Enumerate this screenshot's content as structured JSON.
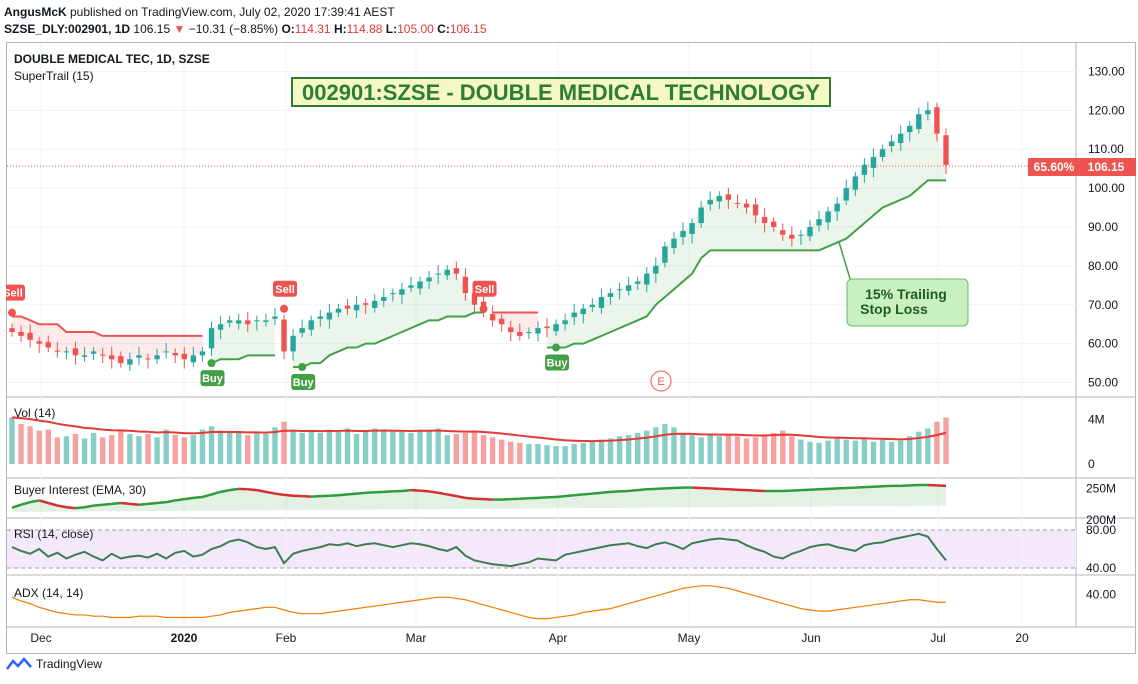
{
  "header": {
    "line1": {
      "author": "AngusMcK",
      "text": " published on TradingView.com, July 02, 2020 17:39:41 AEST"
    },
    "line2": {
      "symbol": "SZSE_DLY:002901, 1D",
      "last": "106.15",
      "change": "−10.31 (−8.85%)",
      "o_label": "O:",
      "o": "114.31",
      "h_label": "H:",
      "h": "114.88",
      "l_label": "L:",
      "l": "105.00",
      "c_label": "C:",
      "c": "106.15"
    }
  },
  "chart_title_line": "DOUBLE MEDICAL TEC, 1D, SZSE",
  "indicator_label": "SuperTrail (15)",
  "banner": "002901:SZSE - DOUBLE MEDICAL TECHNOLOGY",
  "annotation": {
    "line1": "15% Trailing",
    "line2": "Stop Loss"
  },
  "price_badge": {
    "pct": "65.60%",
    "value": "106.15"
  },
  "earnings_marker": "E",
  "signals": [
    {
      "type": "Sell",
      "label": "Sell",
      "date_index": 0
    },
    {
      "type": "Buy",
      "label": "Buy",
      "date_index": 22
    },
    {
      "type": "Sell",
      "label": "Sell",
      "date_index": 30
    },
    {
      "type": "Buy",
      "label": "Buy",
      "date_index": 32
    },
    {
      "type": "Sell",
      "label": "Sell",
      "date_index": 52
    },
    {
      "type": "Buy",
      "label": "Buy",
      "date_index": 60
    }
  ],
  "panes": {
    "volume": {
      "label": "Vol (14)",
      "ticks": [
        "4M",
        "0"
      ]
    },
    "buyer": {
      "label": "Buyer Interest (EMA, 30)",
      "ticks": [
        "250M",
        "200M"
      ]
    },
    "rsi": {
      "label": "RSI (14, close)",
      "ticks": [
        "80.00",
        "40.00"
      ]
    },
    "adx": {
      "label": "ADX (14, 14)",
      "ticks": [
        "40.00"
      ]
    }
  },
  "footer": {
    "brand": "TradingView"
  },
  "colors": {
    "up": "#26a69a",
    "down": "#ef5350",
    "trail_up": "#43a047",
    "trail_down": "#ef5350",
    "rsi": "#3e7d4f",
    "adx": "#f57c00",
    "vol_ma": "#e53935"
  },
  "chart_data": {
    "type": "candlestick",
    "title": "DOUBLE MEDICAL TEC, 1D, SZSE",
    "price_axis_ticks": [
      130,
      120,
      110,
      100,
      90,
      80,
      70,
      60,
      50
    ],
    "ylim": [
      45,
      135
    ],
    "x_axis_labels": [
      "Dec",
      "2020",
      "Feb",
      "Mar",
      "Apr",
      "May",
      "Jun",
      "Jul",
      "20"
    ],
    "close": [
      63,
      62,
      61,
      60,
      59,
      58,
      58,
      57,
      57,
      58,
      57,
      56,
      55,
      56,
      57,
      56,
      57,
      58,
      57,
      56,
      57,
      58,
      64,
      65,
      66,
      66,
      65,
      66,
      66,
      67,
      58,
      62,
      64,
      66,
      67,
      68,
      69,
      69,
      70,
      70,
      71,
      72,
      73,
      74,
      75,
      76,
      77,
      78,
      79,
      78,
      73,
      70,
      68,
      66,
      65,
      63,
      62,
      63,
      64,
      64,
      65,
      66,
      68,
      69,
      70,
      72,
      73,
      74,
      75,
      76,
      78,
      80,
      85,
      87,
      89,
      91,
      95,
      97,
      98,
      97,
      96,
      95,
      93,
      91,
      90,
      88,
      87,
      88,
      90,
      92,
      94,
      96,
      100,
      103,
      106,
      108,
      110,
      112,
      114,
      116,
      119,
      120,
      114,
      106
    ],
    "supertrail": [
      67,
      67,
      66,
      65,
      65,
      65,
      63,
      63,
      63,
      63,
      62,
      62,
      62,
      62,
      62,
      62,
      62,
      62,
      62,
      62,
      62,
      62,
      55,
      56,
      56,
      56,
      57,
      57,
      57,
      57,
      68,
      54,
      54,
      55,
      55,
      57,
      58,
      59,
      59,
      60,
      60,
      61,
      62,
      63,
      64,
      65,
      66,
      66,
      67,
      67,
      67,
      68,
      68,
      68,
      68,
      68,
      68,
      68,
      68,
      59,
      59,
      59,
      60,
      60,
      61,
      62,
      63,
      64,
      65,
      66,
      67,
      70,
      72,
      74,
      76,
      78,
      82,
      84,
      84,
      84,
      84,
      84,
      84,
      84,
      84,
      84,
      84,
      84,
      84,
      84,
      85,
      86,
      87,
      89,
      91,
      93,
      95,
      96,
      97,
      98,
      100,
      102,
      102,
      102
    ],
    "volume_millions": [
      4.2,
      3.6,
      3.4,
      3.0,
      3.1,
      2.4,
      2.5,
      2.7,
      2.3,
      2.8,
      2.4,
      2.6,
      3.0,
      2.7,
      2.5,
      2.7,
      2.4,
      3.1,
      2.6,
      2.4,
      2.6,
      3.1,
      3.4,
      3.0,
      2.8,
      2.9,
      2.6,
      2.8,
      2.7,
      3.3,
      3.8,
      3.0,
      2.8,
      3.0,
      2.8,
      3.1,
      3.0,
      3.2,
      2.7,
      3.0,
      3.2,
      3.1,
      2.9,
      3.0,
      2.8,
      3.1,
      3.0,
      3.2,
      2.6,
      2.7,
      2.8,
      3.0,
      2.6,
      2.4,
      2.2,
      2.0,
      1.9,
      1.8,
      1.8,
      1.7,
      1.6,
      1.6,
      1.8,
      1.9,
      2.0,
      2.2,
      2.3,
      2.5,
      2.6,
      2.8,
      3.0,
      3.3,
      3.6,
      3.3,
      2.8,
      2.6,
      2.4,
      2.6,
      2.5,
      2.7,
      2.5,
      2.3,
      2.4,
      2.6,
      2.8,
      3.0,
      2.5,
      2.2,
      2.0,
      1.9,
      2.1,
      2.3,
      2.2,
      2.1,
      2.3,
      2.0,
      2.2,
      2.0,
      2.1,
      2.5,
      2.9,
      3.2,
      3.8,
      4.2
    ],
    "rsi": [
      62,
      58,
      55,
      60,
      52,
      56,
      50,
      54,
      57,
      52,
      48,
      55,
      50,
      52,
      53,
      51,
      55,
      50,
      56,
      58,
      52,
      54,
      60,
      63,
      68,
      70,
      67,
      62,
      60,
      62,
      45,
      55,
      58,
      60,
      62,
      65,
      64,
      66,
      63,
      65,
      66,
      64,
      62,
      64,
      66,
      65,
      63,
      60,
      58,
      62,
      53,
      48,
      46,
      44,
      43,
      42,
      44,
      46,
      50,
      49,
      48,
      54,
      56,
      58,
      60,
      62,
      64,
      65,
      66,
      63,
      61,
      65,
      67,
      64,
      60,
      66,
      68,
      70,
      71,
      70,
      69,
      64,
      60,
      57,
      52,
      50,
      55,
      58,
      62,
      64,
      65,
      62,
      60,
      58,
      64,
      66,
      67,
      70,
      72,
      74,
      76,
      73,
      60,
      48
    ],
    "adx": [
      38,
      35,
      33,
      30,
      28,
      26,
      25,
      24,
      24,
      23,
      23,
      22,
      22,
      22,
      23,
      23,
      23,
      22,
      22,
      22,
      22,
      22,
      23,
      24,
      26,
      27,
      28,
      29,
      30,
      30,
      28,
      26,
      25,
      25,
      25,
      26,
      27,
      28,
      29,
      30,
      31,
      32,
      33,
      34,
      35,
      36,
      37,
      38,
      38,
      37,
      36,
      34,
      32,
      30,
      28,
      26,
      24,
      22,
      21,
      21,
      22,
      23,
      24,
      26,
      27,
      28,
      29,
      31,
      33,
      35,
      37,
      39,
      41,
      43,
      45,
      46,
      47,
      47,
      46,
      45,
      43,
      41,
      39,
      37,
      35,
      33,
      31,
      29,
      28,
      27,
      27,
      28,
      29,
      30,
      31,
      32,
      33,
      34,
      35,
      36,
      36,
      35,
      34,
      34
    ],
    "buyer_interest_millions": [
      205,
      212,
      218,
      222,
      216,
      210,
      206,
      204,
      206,
      210,
      212,
      214,
      216,
      214,
      212,
      214,
      216,
      218,
      222,
      225,
      228,
      230,
      236,
      242,
      246,
      249,
      248,
      246,
      242,
      238,
      235,
      233,
      232,
      231,
      232,
      233,
      234,
      236,
      238,
      240,
      241,
      242,
      243,
      244,
      246,
      245,
      243,
      240,
      236,
      232,
      228,
      226,
      225,
      224,
      224,
      225,
      226,
      227,
      228,
      229,
      230,
      232,
      234,
      236,
      238,
      240,
      242,
      243,
      244,
      246,
      248,
      249,
      250,
      251,
      252,
      252,
      251,
      250,
      249,
      248,
      247,
      246,
      245,
      244,
      244,
      244,
      245,
      246,
      247,
      248,
      249,
      250,
      251,
      252,
      253,
      254,
      255,
      256,
      256,
      257,
      258,
      258,
      257,
      256
    ]
  }
}
